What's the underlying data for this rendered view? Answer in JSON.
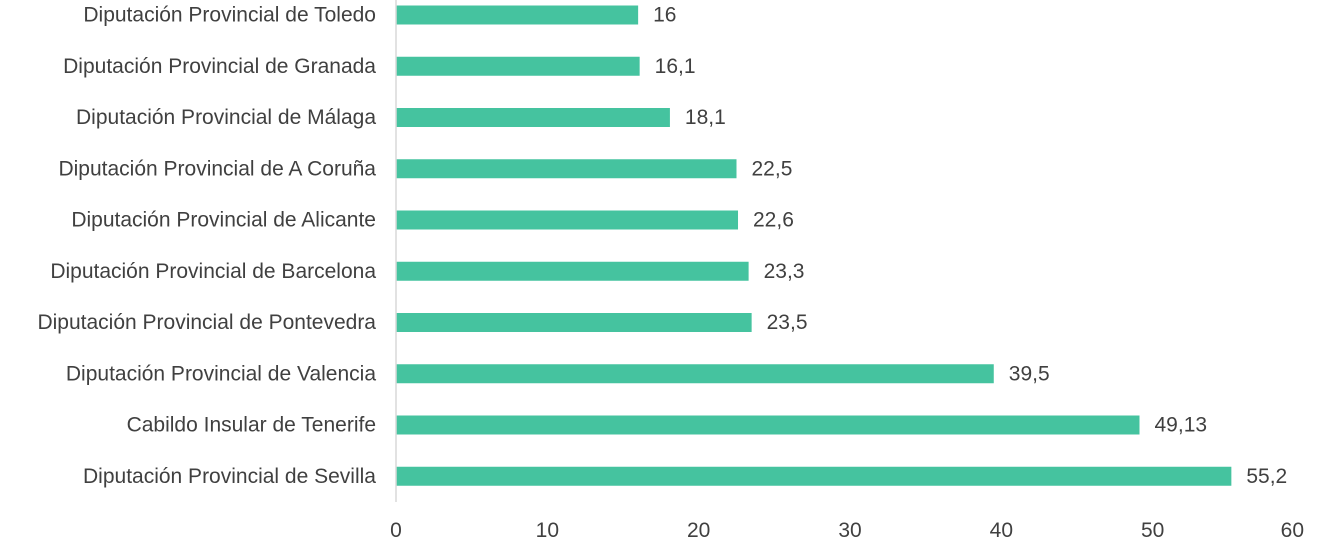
{
  "chart_data": {
    "type": "bar",
    "orientation": "horizontal",
    "categories": [
      "Diputación Provincial de Toledo",
      "Diputación Provincial de Granada",
      "Diputación Provincial de Málaga",
      "Diputación Provincial de A Coruña",
      "Diputación Provincial de Alicante",
      "Diputación Provincial de Barcelona",
      "Diputación Provincial de Pontevedra",
      "Diputación Provincial de Valencia",
      "Cabildo Insular de Tenerife",
      "Diputación Provincial de Sevilla"
    ],
    "values": [
      16,
      16.1,
      18.1,
      22.5,
      22.6,
      23.3,
      23.5,
      39.5,
      49.13,
      55.2
    ],
    "value_labels": [
      "16",
      "16,1",
      "18,1",
      "22,5",
      "22,6",
      "23,3",
      "23,5",
      "39,5",
      "49,13",
      "55,2"
    ],
    "xlim": [
      0,
      60
    ],
    "xticks": [
      "0",
      "10",
      "20",
      "30",
      "40",
      "50",
      "60"
    ],
    "title": "",
    "xlabel": "",
    "ylabel": "",
    "grid": false,
    "legend": "none",
    "colors": {
      "bar": "#45c39f",
      "axis": "#d9d9d9",
      "text": "#404040"
    }
  }
}
